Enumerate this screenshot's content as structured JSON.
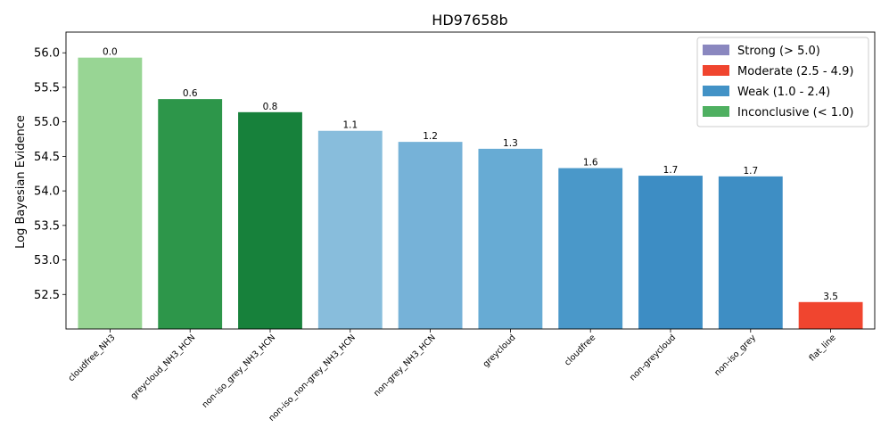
{
  "chart_data": {
    "type": "bar",
    "title": "HD97658b",
    "xlabel": "",
    "ylabel": "Log Bayesian Evidence",
    "ylim": [
      52.0,
      56.3
    ],
    "yticks": [
      52.5,
      53.0,
      53.5,
      54.0,
      54.5,
      55.0,
      55.5,
      56.0
    ],
    "ytick_labels": [
      "52.5",
      "53.0",
      "53.5",
      "54.0",
      "54.5",
      "55.0",
      "55.5",
      "56.0"
    ],
    "categories": [
      "cloudfree_NH3",
      "greycloud_NH3_HCN",
      "non-iso_grey_NH3_HCN",
      "non-iso_non-grey_NH3_HCN",
      "non-grey_NH3_HCN",
      "greycloud",
      "cloudfree",
      "non-greycloud",
      "non-iso_grey",
      "flat_line"
    ],
    "values": [
      55.93,
      55.33,
      55.14,
      54.87,
      54.71,
      54.61,
      54.33,
      54.22,
      54.21,
      52.39
    ],
    "bar_labels": [
      "0.0",
      "0.6",
      "0.8",
      "1.1",
      "1.2",
      "1.3",
      "1.6",
      "1.7",
      "1.7",
      "3.5"
    ],
    "bar_colors": [
      "#98d594",
      "#2d964a",
      "#17813b",
      "#88bddc",
      "#76b2d8",
      "#67abd4",
      "#4a98c9",
      "#3d8dc4",
      "#3e8ec4",
      "#f0452f"
    ],
    "legend": {
      "placement": "top-right",
      "entries": [
        {
          "label": "Strong (> 5.0)",
          "color": "#8a87bf"
        },
        {
          "label": "Moderate (2.5 - 4.9)",
          "color": "#f0452f"
        },
        {
          "label": "Weak (1.0 - 2.4)",
          "color": "#4292c6"
        },
        {
          "label": "Inconclusive (< 1.0)",
          "color": "#4fb061"
        }
      ]
    },
    "grid": false
  }
}
